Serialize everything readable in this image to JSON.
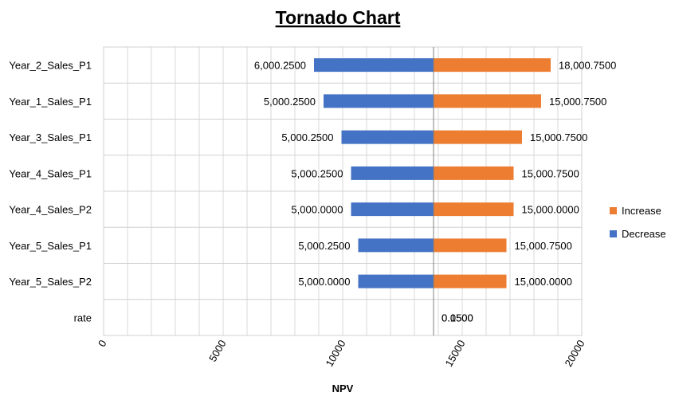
{
  "chart_data": {
    "type": "bar",
    "orientation": "horizontal-tornado",
    "title": "Tornado Chart",
    "xlabel": "NPV",
    "ylabel": "",
    "xlim": [
      0,
      20000
    ],
    "x_ticks": [
      "0",
      "5000",
      "10000",
      "15000",
      "20000"
    ],
    "base_value": 13800,
    "grid": true,
    "legend_position": "right",
    "categories": [
      "Year_2_Sales_P1",
      "Year_1_Sales_P1",
      "Year_3_Sales_P1",
      "Year_4_Sales_P1",
      "Year_4_Sales_P2",
      "Year_5_Sales_P1",
      "Year_5_Sales_P2",
      "rate"
    ],
    "series": [
      {
        "name": "Increase",
        "color": "#ED7D31",
        "values": [
          18700,
          18300,
          17500,
          17150,
          17150,
          16850,
          16850,
          null
        ],
        "labels": [
          "18,000.7500",
          "15,000.7500",
          "15,000.7500",
          "15,000.7500",
          "15,000.0000",
          "15,000.7500",
          "15,000.0000",
          "0.1500"
        ]
      },
      {
        "name": "Decrease",
        "color": "#4472C4",
        "values": [
          8800,
          9200,
          9950,
          10350,
          10350,
          10650,
          10650,
          null
        ],
        "labels": [
          "6,000.2500",
          "5,000.2500",
          "5,000.2500",
          "5,000.2500",
          "5,000.0000",
          "5,000.2500",
          "5,000.0000",
          "0.0500"
        ]
      }
    ]
  }
}
